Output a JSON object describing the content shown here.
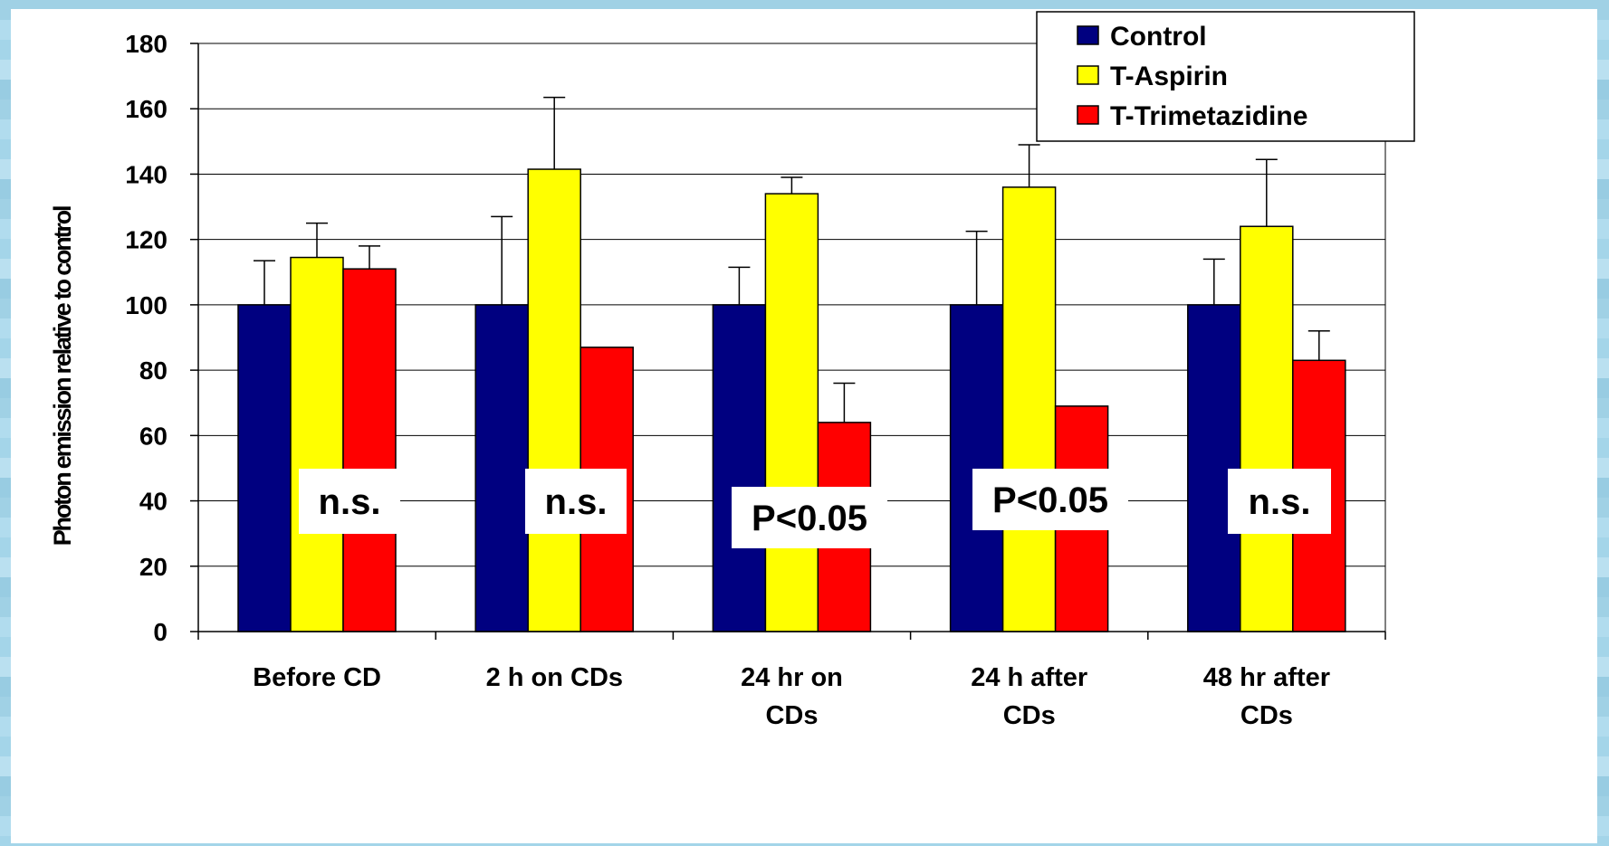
{
  "chart_data": {
    "type": "bar",
    "ylabel": "Photon emission relative to control",
    "ylim": [
      0,
      180
    ],
    "yticks": [
      0,
      20,
      40,
      60,
      80,
      100,
      120,
      140,
      160,
      180
    ],
    "categories": [
      [
        "Before CD"
      ],
      [
        "2 h on CDs"
      ],
      [
        "24 hr on",
        "CDs"
      ],
      [
        "24 h after",
        "CDs"
      ],
      [
        "48 hr after",
        "CDs"
      ]
    ],
    "series": [
      {
        "name": "Control",
        "color": "#000080",
        "values": [
          100,
          100,
          100,
          100,
          100
        ],
        "errors": [
          13.5,
          27,
          11.5,
          22.5,
          14
        ]
      },
      {
        "name": "T-Aspirin",
        "color": "#ffff00",
        "values": [
          114.5,
          141.5,
          134,
          136,
          124
        ],
        "errors": [
          10.5,
          22,
          5,
          13,
          20.5
        ]
      },
      {
        "name": "T-Trimetazidine",
        "color": "#ff0000",
        "values": [
          111,
          87,
          64,
          69,
          83
        ],
        "errors": [
          7,
          null,
          12,
          null,
          9
        ]
      }
    ],
    "annotations": [
      "n.s.",
      "n.s.",
      "P<0.05",
      "P<0.05",
      "n.s."
    ],
    "grid": true,
    "legend_position": "top-right"
  }
}
